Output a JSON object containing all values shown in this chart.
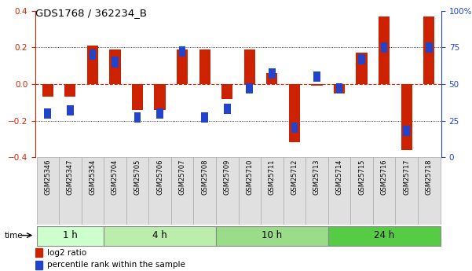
{
  "title": "GDS1768 / 362234_B",
  "samples": [
    "GSM25346",
    "GSM25347",
    "GSM25354",
    "GSM25704",
    "GSM25705",
    "GSM25706",
    "GSM25707",
    "GSM25708",
    "GSM25709",
    "GSM25710",
    "GSM25711",
    "GSM25712",
    "GSM25713",
    "GSM25714",
    "GSM25715",
    "GSM25716",
    "GSM25717",
    "GSM25718"
  ],
  "log2_ratio": [
    -0.07,
    -0.07,
    0.21,
    0.19,
    -0.14,
    -0.14,
    0.19,
    0.19,
    -0.08,
    0.19,
    0.06,
    -0.32,
    -0.01,
    -0.05,
    0.17,
    0.37,
    -0.36,
    0.37
  ],
  "percentile_rank": [
    30,
    32,
    70,
    65,
    27,
    30,
    72,
    27,
    33,
    47,
    57,
    20,
    55,
    47,
    67,
    75,
    18,
    75
  ],
  "groups": [
    {
      "label": "1 h",
      "start": 0,
      "end": 3,
      "color": "#ccffcc"
    },
    {
      "label": "4 h",
      "start": 3,
      "end": 8,
      "color": "#bbeeaa"
    },
    {
      "label": "10 h",
      "start": 8,
      "end": 13,
      "color": "#99dd88"
    },
    {
      "label": "24 h",
      "start": 13,
      "end": 18,
      "color": "#55cc44"
    }
  ],
  "ylim_left": [
    -0.4,
    0.4
  ],
  "ylim_right": [
    0,
    100
  ],
  "red_color": "#cc2200",
  "blue_color": "#2244cc",
  "zero_line_color": "#cc2200",
  "yticks_left": [
    -0.4,
    -0.2,
    0.0,
    0.2,
    0.4
  ],
  "yticks_right": [
    0,
    25,
    50,
    75,
    100
  ],
  "legend_items": [
    "log2 ratio",
    "percentile rank within the sample"
  ]
}
